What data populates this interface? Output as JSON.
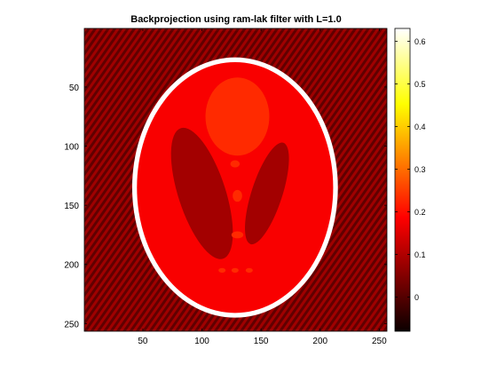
{
  "chart_data": {
    "type": "heatmap",
    "title": "Backprojection using ram-lak filter with L=1.0",
    "xlabel": "",
    "ylabel": "",
    "xlim": [
      0.5,
      256.5
    ],
    "ylim": [
      0.5,
      256.5
    ],
    "y_reversed": true,
    "x_ticks": [
      50,
      100,
      150,
      200,
      250
    ],
    "x_tick_labels": [
      "50",
      "100",
      "150",
      "200",
      "250"
    ],
    "y_ticks": [
      50,
      100,
      150,
      200,
      250
    ],
    "y_tick_labels": [
      "50",
      "100",
      "150",
      "200",
      "250"
    ],
    "colormap": "hot",
    "clim": [
      -0.08,
      0.63
    ],
    "colorbar": {
      "placement": "right",
      "ticks": [
        0,
        0.1,
        0.2,
        0.3,
        0.4,
        0.5,
        0.6
      ],
      "tick_labels": [
        "0",
        "0.1",
        "0.2",
        "0.3",
        "0.4",
        "0.5",
        "0.6"
      ]
    },
    "image_description_values": {
      "background_level": 0.02,
      "outer_ellipse": {
        "center": [
          128,
          135
        ],
        "semi_axes": [
          87,
          110
        ],
        "rim_value": 0.63,
        "interior_value": 0.18
      },
      "dark_ellipses": [
        {
          "center": [
            100,
            140
          ],
          "semi_axes": [
            20,
            58
          ],
          "rotation_deg": -18,
          "value": 0.09
        },
        {
          "center": [
            155,
            140
          ],
          "semi_axes": [
            13,
            45
          ],
          "rotation_deg": 18,
          "value": 0.09
        }
      ],
      "bright_ellipse": {
        "center": [
          130,
          75
        ],
        "semi_axes": [
          27,
          33
        ],
        "value": 0.23
      },
      "small_blobs": [
        {
          "center": [
            130,
            175
          ],
          "semi_axes": [
            5,
            3
          ],
          "value": 0.23
        },
        {
          "center": [
            130,
            142
          ],
          "semi_axes": [
            4,
            5
          ],
          "value": 0.23
        },
        {
          "center": [
            128,
            115
          ],
          "semi_axes": [
            4,
            3
          ],
          "value": 0.23
        },
        {
          "center": [
            117,
            205
          ],
          "semi_axes": [
            3,
            2
          ],
          "value": 0.23
        },
        {
          "center": [
            128,
            205
          ],
          "semi_axes": [
            3,
            2
          ],
          "value": 0.23
        },
        {
          "center": [
            140,
            205
          ],
          "semi_axes": [
            3,
            2
          ],
          "value": 0.23
        }
      ]
    }
  }
}
